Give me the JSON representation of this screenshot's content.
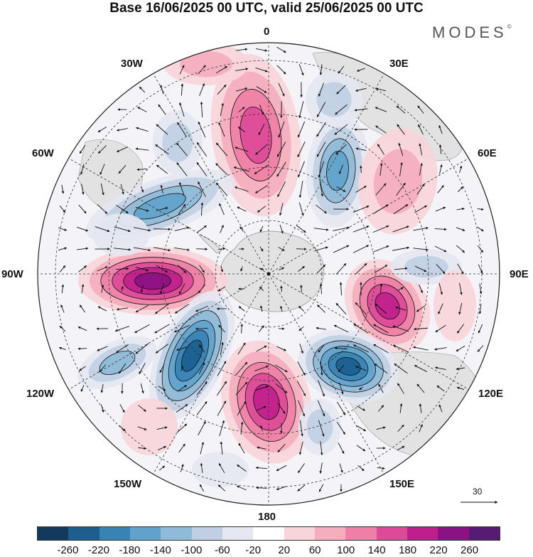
{
  "title": "Base 16/06/2025 00 UTC, valid 25/06/2025 00 UTC",
  "brand": "MODES",
  "brand_mark": "©",
  "longitude_labels": {
    "n0": "0",
    "e30": "30E",
    "e60": "60E",
    "e90": "90E",
    "e120": "120E",
    "e150": "150E",
    "s180": "180",
    "w150": "150W",
    "w120": "120W",
    "w90": "90W",
    "w60": "60W",
    "w30": "30W"
  },
  "reference_vector": "30",
  "colorbar": {
    "labels": [
      "-260",
      "-220",
      "-180",
      "-140",
      "-100",
      "-60",
      "-20",
      "20",
      "60",
      "100",
      "140",
      "180",
      "220",
      "260"
    ],
    "colors": [
      "#123a5c",
      "#1c5f8f",
      "#3783b5",
      "#5fa2cc",
      "#8fbad8",
      "#c0cfe3",
      "#e5e7f1",
      "#ffffff",
      "#f8d5da",
      "#f5aebe",
      "#ee7fa6",
      "#dd4a97",
      "#bf1f8c",
      "#8b1284",
      "#561c74"
    ]
  },
  "map": {
    "projection": "south polar stereographic",
    "field": "anomaly with wind vectors",
    "land_color": "#e2e2e2",
    "grid": "dashed"
  }
}
